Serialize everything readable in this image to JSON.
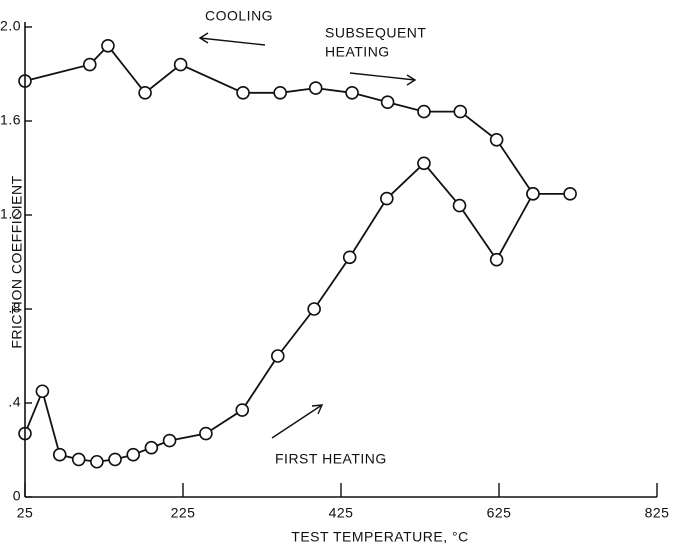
{
  "chart_data": {
    "type": "line",
    "x_label": "TEST TEMPERATURE, °C",
    "y_label": "FRICTION COEFFICIENT",
    "xlim": [
      25,
      825
    ],
    "xticks": [
      25,
      225,
      425,
      625,
      825
    ],
    "ylim": [
      0,
      2.0
    ],
    "yticks": [
      0,
      {
        "value": 0.4,
        "label": ".4"
      },
      {
        "value": 0.8,
        "label": ".8"
      },
      {
        "value": 1.2,
        "label": "1.2"
      },
      {
        "value": 1.6,
        "label": "1.6"
      },
      {
        "value": 2.0,
        "label": "2.0"
      }
    ],
    "grid": false,
    "series": [
      {
        "color": "#111111",
        "x": [
          25,
          47,
          69,
          93,
          116,
          139,
          162,
          185,
          208,
          254,
          300,
          345,
          391,
          436,
          483,
          530,
          575,
          622,
          668,
          715,
          668,
          622,
          576,
          530,
          484,
          439,
          393,
          348,
          301,
          222,
          177,
          130,
          107,
          25
        ],
        "values": [
          0.27,
          0.45,
          0.18,
          0.16,
          0.15,
          0.16,
          0.18,
          0.21,
          0.24,
          0.27,
          0.37,
          0.6,
          0.8,
          1.02,
          1.27,
          1.42,
          1.24,
          1.01,
          1.29,
          1.29,
          1.29,
          1.52,
          1.64,
          1.64,
          1.68,
          1.72,
          1.74,
          1.72,
          1.72,
          1.84,
          1.72,
          1.92,
          1.84,
          1.77
        ]
      }
    ],
    "annotations": [
      {
        "lines": [
          "COOLING"
        ]
      },
      {
        "lines": [
          "SUBSEQUENT",
          "HEATING"
        ]
      },
      {
        "lines": [
          "FIRST HEATING"
        ]
      }
    ]
  }
}
